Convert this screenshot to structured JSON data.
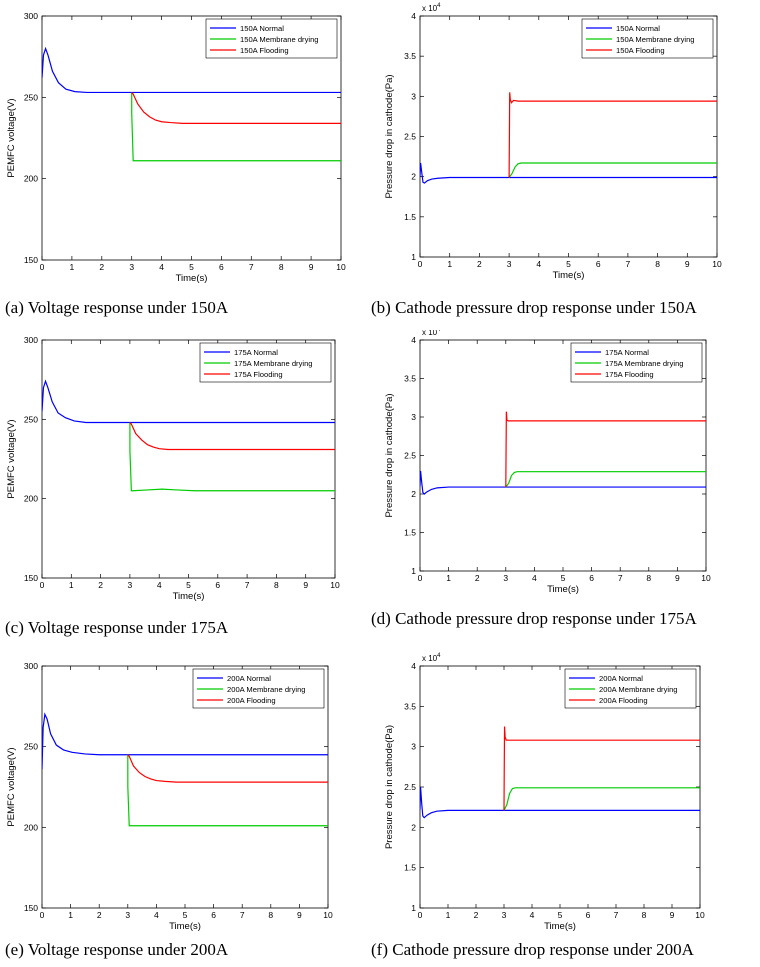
{
  "figure": {
    "panels": [
      {
        "caption": "(a) Voltage response under 150A",
        "chart_data": {
          "type": "line",
          "title": "",
          "xlabel": "Time(s)",
          "ylabel": "PEMFC voltage(V)",
          "xlim": [
            0,
            10
          ],
          "ylim": [
            150,
            300
          ],
          "xticks": [
            0,
            1,
            2,
            3,
            4,
            5,
            6,
            7,
            8,
            9,
            10
          ],
          "yticks": [
            150,
            200,
            250,
            300
          ],
          "exponent_label": "",
          "legend_position": "top-right",
          "series": [
            {
              "name": "150A Normal",
              "color": "#0000ff",
              "x": [
                0,
                0.05,
                0.12,
                0.2,
                0.35,
                0.55,
                0.8,
                1.1,
                1.5,
                3,
                10
              ],
              "y": [
                262,
                276,
                280,
                276,
                266,
                259,
                255,
                253.5,
                253,
                253,
                253
              ]
            },
            {
              "name": "150A Membrane drying",
              "color": "#00cc00",
              "x": [
                3,
                3.001,
                3.05,
                3.1,
                10
              ],
              "y": [
                253,
                240,
                211,
                211,
                211
              ]
            },
            {
              "name": "150A Flooding",
              "color": "#ff0000",
              "x": [
                3,
                3.05,
                3.2,
                3.4,
                3.6,
                3.8,
                4.0,
                4.3,
                4.7,
                5.2,
                10
              ],
              "y": [
                253,
                252,
                246,
                241,
                238,
                236,
                235,
                234.5,
                234,
                234,
                234
              ]
            }
          ]
        }
      },
      {
        "caption": "(b) Cathode pressure drop response under 150A",
        "chart_data": {
          "type": "line",
          "title": "",
          "xlabel": "Time(s)",
          "ylabel": "Pressure drop in cathode(Pa)",
          "xlim": [
            0,
            10
          ],
          "ylim": [
            1,
            4
          ],
          "xticks": [
            0,
            1,
            2,
            3,
            4,
            5,
            6,
            7,
            8,
            9,
            10
          ],
          "yticks": [
            1,
            1.5,
            2,
            2.5,
            3,
            3.5,
            4
          ],
          "exponent_label": "x 10^4",
          "legend_position": "top-right",
          "series": [
            {
              "name": "150A Normal",
              "color": "#0000ff",
              "x": [
                0,
                0.02,
                0.06,
                0.1,
                0.15,
                0.25,
                0.4,
                0.6,
                1,
                3,
                10
              ],
              "y": [
                2.0,
                2.17,
                2.05,
                1.93,
                1.92,
                1.95,
                1.97,
                1.98,
                1.99,
                1.99,
                1.99
              ]
            },
            {
              "name": "150A Membrane drying",
              "color": "#00cc00",
              "x": [
                3,
                3.1,
                3.2,
                3.3,
                3.4,
                10
              ],
              "y": [
                1.99,
                2.04,
                2.12,
                2.16,
                2.17,
                2.17
              ]
            },
            {
              "name": "150A Flooding",
              "color": "#ff0000",
              "x": [
                3,
                3.01,
                3.02,
                3.04,
                3.08,
                3.15,
                3.3,
                3.5,
                10
              ],
              "y": [
                1.99,
                2.5,
                3.05,
                2.96,
                2.92,
                2.95,
                2.94,
                2.94,
                2.94
              ]
            }
          ]
        }
      },
      {
        "caption": "(c) Voltage response under 175A",
        "chart_data": {
          "type": "line",
          "title": "",
          "xlabel": "Time(s)",
          "ylabel": "PEMFC voltage(V)",
          "xlim": [
            0,
            10
          ],
          "ylim": [
            150,
            300
          ],
          "xticks": [
            0,
            1,
            2,
            3,
            4,
            5,
            6,
            7,
            8,
            9,
            10
          ],
          "yticks": [
            150,
            200,
            250,
            300
          ],
          "exponent_label": "",
          "legend_position": "top-right",
          "series": [
            {
              "name": "175A Normal",
              "color": "#0000ff",
              "x": [
                0,
                0.05,
                0.12,
                0.2,
                0.35,
                0.55,
                0.8,
                1.1,
                1.5,
                3,
                10
              ],
              "y": [
                255,
                270,
                274,
                270,
                261,
                254,
                251,
                249,
                248,
                248,
                248
              ]
            },
            {
              "name": "175A Membrane drying",
              "color": "#00cc00",
              "x": [
                3,
                3.001,
                3.05,
                3.1,
                3.6,
                4.1,
                4.6,
                5.2,
                10
              ],
              "y": [
                248,
                230,
                205,
                205,
                205.5,
                206,
                205.5,
                205,
                205
              ]
            },
            {
              "name": "175A Flooding",
              "color": "#ff0000",
              "x": [
                3,
                3.05,
                3.2,
                3.4,
                3.6,
                3.8,
                4.0,
                4.3,
                4.7,
                5.2,
                10
              ],
              "y": [
                248,
                247,
                241,
                237,
                234,
                232.5,
                231.5,
                231,
                231,
                231,
                231
              ]
            }
          ]
        }
      },
      {
        "caption": "(d) Cathode pressure drop response under 175A",
        "chart_data": {
          "type": "line",
          "title": "",
          "xlabel": "Time(s)",
          "ylabel": "Pressure drop in cathode(Pa)",
          "xlim": [
            0,
            10
          ],
          "ylim": [
            1,
            4
          ],
          "xticks": [
            0,
            1,
            2,
            3,
            4,
            5,
            6,
            7,
            8,
            9,
            10
          ],
          "yticks": [
            1,
            1.5,
            2,
            2.5,
            3,
            3.5,
            4
          ],
          "exponent_label": "x 10^4",
          "legend_position": "top-right",
          "series": [
            {
              "name": "175A Normal",
              "color": "#0000ff",
              "x": [
                0,
                0.02,
                0.06,
                0.1,
                0.15,
                0.25,
                0.4,
                0.6,
                1,
                3,
                10
              ],
              "y": [
                2.1,
                2.3,
                2.15,
                2.02,
                2.0,
                2.03,
                2.06,
                2.08,
                2.09,
                2.09,
                2.09
              ]
            },
            {
              "name": "175A Membrane drying",
              "color": "#00cc00",
              "x": [
                3,
                3.1,
                3.2,
                3.3,
                3.4,
                10
              ],
              "y": [
                2.09,
                2.14,
                2.24,
                2.28,
                2.29,
                2.29
              ]
            },
            {
              "name": "175A Flooding",
              "color": "#ff0000",
              "x": [
                3,
                3.01,
                3.02,
                3.04,
                3.08,
                10
              ],
              "y": [
                2.09,
                2.6,
                3.07,
                2.96,
                2.95,
                2.95
              ]
            }
          ]
        }
      },
      {
        "caption": "(e) Voltage response under 200A",
        "chart_data": {
          "type": "line",
          "title": "",
          "xlabel": "Time(s)",
          "ylabel": "PEMFC voltage(V)",
          "xlim": [
            0,
            10
          ],
          "ylim": [
            150,
            300
          ],
          "xticks": [
            0,
            1,
            2,
            3,
            4,
            5,
            6,
            7,
            8,
            9,
            10
          ],
          "yticks": [
            150,
            200,
            250,
            300
          ],
          "exponent_label": "",
          "legend_position": "top-right",
          "series": [
            {
              "name": "200A Normal",
              "color": "#0000ff",
              "x": [
                0,
                0.04,
                0.1,
                0.18,
                0.3,
                0.5,
                0.75,
                1.05,
                1.5,
                2,
                3,
                10
              ],
              "y": [
                236,
                262,
                270,
                267,
                258,
                251,
                248,
                246.5,
                245.5,
                245,
                245,
                245
              ]
            },
            {
              "name": "200A Membrane drying",
              "color": "#00cc00",
              "x": [
                3,
                3.001,
                3.05,
                3.1,
                10
              ],
              "y": [
                245,
                225,
                201,
                201,
                201
              ]
            },
            {
              "name": "200A Flooding",
              "color": "#ff0000",
              "x": [
                3,
                3.05,
                3.2,
                3.4,
                3.6,
                3.8,
                4.0,
                4.3,
                4.7,
                5.2,
                10
              ],
              "y": [
                245,
                244,
                238,
                234,
                231.5,
                230,
                229,
                228.5,
                228,
                228,
                228
              ]
            }
          ]
        }
      },
      {
        "caption": "(f) Cathode pressure drop response under 200A",
        "chart_data": {
          "type": "line",
          "title": "",
          "xlabel": "Time(s)",
          "ylabel": "Pressure drop in cathode(Pa)",
          "xlim": [
            0,
            10
          ],
          "ylim": [
            1,
            4
          ],
          "xticks": [
            0,
            1,
            2,
            3,
            4,
            5,
            6,
            7,
            8,
            9,
            10
          ],
          "yticks": [
            1,
            1.5,
            2,
            2.5,
            3,
            3.5,
            4
          ],
          "exponent_label": "x 10^4",
          "legend_position": "top-right",
          "series": [
            {
              "name": "200A Normal",
              "color": "#0000ff",
              "x": [
                0,
                0.02,
                0.06,
                0.1,
                0.15,
                0.25,
                0.4,
                0.6,
                1,
                3,
                10
              ],
              "y": [
                2.22,
                2.5,
                2.3,
                2.14,
                2.12,
                2.15,
                2.18,
                2.2,
                2.21,
                2.21,
                2.21
              ]
            },
            {
              "name": "200A Membrane drying",
              "color": "#00cc00",
              "x": [
                3,
                3.1,
                3.2,
                3.3,
                3.4,
                10
              ],
              "y": [
                2.21,
                2.28,
                2.42,
                2.48,
                2.49,
                2.49
              ]
            },
            {
              "name": "200A Flooding",
              "color": "#ff0000",
              "x": [
                3,
                3.01,
                3.02,
                3.04,
                3.08,
                10
              ],
              "y": [
                2.21,
                2.8,
                3.25,
                3.12,
                3.08,
                3.08
              ]
            }
          ]
        }
      }
    ]
  }
}
